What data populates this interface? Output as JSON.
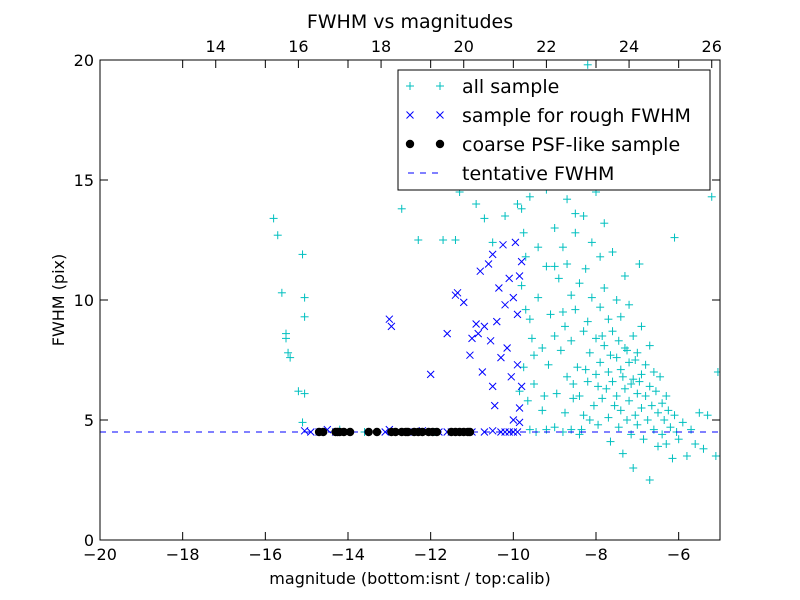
{
  "chart_data": {
    "type": "scatter",
    "title": "FWHM vs magnitudes",
    "xlabel": "magnitude (bottom:isnt / top:calib)",
    "ylabel": "FWHM (pix)",
    "xlim": [
      -20,
      -5
    ],
    "ylim": [
      0,
      20
    ],
    "x_ticks": [
      -20,
      -18,
      -16,
      -14,
      -12,
      -10,
      -8,
      -6
    ],
    "x_tick_labels": [
      "−20",
      "−18",
      "−16",
      "−14",
      "−12",
      "−10",
      "−8",
      "−6"
    ],
    "y_ticks": [
      0,
      5,
      10,
      15,
      20
    ],
    "y_tick_labels": [
      "0",
      "5",
      "10",
      "15",
      "20"
    ],
    "top_axis": {
      "ticks": [
        14,
        16,
        18,
        20,
        22,
        24,
        26
      ],
      "tick_labels": [
        "14",
        "16",
        "18",
        "20",
        "22",
        "24",
        "26"
      ],
      "offset": 31.2
    },
    "grid": false,
    "legend_position": "top-right",
    "series": [
      {
        "name": "all sample",
        "marker": "plus",
        "color": "#00bfbf",
        "points": [
          [
            -15.8,
            13.4
          ],
          [
            -15.7,
            12.7
          ],
          [
            -15.6,
            10.3
          ],
          [
            -15.5,
            8.6
          ],
          [
            -15.5,
            8.4
          ],
          [
            -15.45,
            7.8
          ],
          [
            -15.4,
            7.6
          ],
          [
            -15.2,
            6.2
          ],
          [
            -15.05,
            6.1
          ],
          [
            -15.1,
            11.9
          ],
          [
            -15.05,
            10.1
          ],
          [
            -15.05,
            9.3
          ],
          [
            -15.1,
            4.9
          ],
          [
            -14.2,
            4.6
          ],
          [
            -13.6,
            4.5
          ],
          [
            -12.7,
            13.8
          ],
          [
            -12.3,
            12.5
          ],
          [
            -11.7,
            12.5
          ],
          [
            -11.4,
            12.5
          ],
          [
            -11.3,
            14.5
          ],
          [
            -11.9,
            4.5
          ],
          [
            -10.9,
            14.0
          ],
          [
            -10.7,
            13.4
          ],
          [
            -10.5,
            12.4
          ],
          [
            -10.2,
            13.5
          ],
          [
            -10.0,
            19.3
          ],
          [
            -9.95,
            17.5
          ],
          [
            -9.9,
            15.2
          ],
          [
            -9.8,
            13.8
          ],
          [
            -9.75,
            12.8
          ],
          [
            -9.7,
            11.8
          ],
          [
            -9.7,
            9.6
          ],
          [
            -9.6,
            9.2
          ],
          [
            -9.55,
            8.4
          ],
          [
            -9.5,
            6.5
          ],
          [
            -9.45,
            15.6
          ],
          [
            -9.4,
            12.2
          ],
          [
            -9.4,
            10.1
          ],
          [
            -9.3,
            8.0
          ],
          [
            -9.3,
            5.4
          ],
          [
            -9.2,
            11.4
          ],
          [
            -9.2,
            14.6
          ],
          [
            -9.15,
            7.3
          ],
          [
            -9.1,
            9.4
          ],
          [
            -9.0,
            13.0
          ],
          [
            -9.0,
            11.4
          ],
          [
            -9.0,
            8.5
          ],
          [
            -8.95,
            6.1
          ],
          [
            -8.9,
            15.1
          ],
          [
            -8.9,
            10.9
          ],
          [
            -8.85,
            7.9
          ],
          [
            -8.8,
            12.2
          ],
          [
            -8.8,
            9.5
          ],
          [
            -8.75,
            5.3
          ],
          [
            -8.7,
            14.2
          ],
          [
            -8.7,
            11.5
          ],
          [
            -8.7,
            6.8
          ],
          [
            -8.6,
            10.2
          ],
          [
            -8.6,
            8.3
          ],
          [
            -8.55,
            5.9
          ],
          [
            -8.5,
            12.8
          ],
          [
            -8.5,
            9.6
          ],
          [
            -8.45,
            7.2
          ],
          [
            -8.4,
            10.7
          ],
          [
            -8.4,
            6.0
          ],
          [
            -8.35,
            4.6
          ],
          [
            -8.3,
            13.5
          ],
          [
            -8.3,
            8.7
          ],
          [
            -8.3,
            5.2
          ],
          [
            -8.25,
            11.3
          ],
          [
            -8.2,
            9.1
          ],
          [
            -8.2,
            6.6
          ],
          [
            -8.15,
            7.8
          ],
          [
            -8.1,
            12.4
          ],
          [
            -8.1,
            10.1
          ],
          [
            -8.05,
            5.6
          ],
          [
            -8.0,
            14.5
          ],
          [
            -8.0,
            8.4
          ],
          [
            -8.0,
            6.9
          ],
          [
            -7.95,
            4.8
          ],
          [
            -7.9,
            11.8
          ],
          [
            -7.9,
            9.7
          ],
          [
            -7.9,
            7.4
          ],
          [
            -7.85,
            5.9
          ],
          [
            -7.8,
            13.2
          ],
          [
            -7.8,
            10.5
          ],
          [
            -7.8,
            8.1
          ],
          [
            -7.75,
            6.3
          ],
          [
            -7.7,
            9.2
          ],
          [
            -7.7,
            7.0
          ],
          [
            -7.7,
            5.1
          ],
          [
            -7.65,
            4.1
          ],
          [
            -7.6,
            12.0
          ],
          [
            -7.6,
            8.7
          ],
          [
            -7.6,
            6.6
          ],
          [
            -7.55,
            5.6
          ],
          [
            -7.5,
            10.0
          ],
          [
            -7.5,
            7.6
          ],
          [
            -7.5,
            6.0
          ],
          [
            -7.45,
            4.7
          ],
          [
            -7.4,
            9.3
          ],
          [
            -7.4,
            7.1
          ],
          [
            -7.4,
            5.4
          ],
          [
            -7.35,
            3.6
          ],
          [
            -7.3,
            11.0
          ],
          [
            -7.3,
            8.0
          ],
          [
            -7.3,
            6.3
          ],
          [
            -7.25,
            5.0
          ],
          [
            -7.2,
            9.8
          ],
          [
            -7.2,
            7.4
          ],
          [
            -7.2,
            5.8
          ],
          [
            -7.15,
            4.4
          ],
          [
            -7.1,
            8.5
          ],
          [
            -7.1,
            6.7
          ],
          [
            -7.1,
            3.0
          ],
          [
            -7.05,
            5.2
          ],
          [
            -7.0,
            7.8
          ],
          [
            -7.0,
            6.1
          ],
          [
            -7.0,
            4.8
          ],
          [
            -6.95,
            11.5
          ],
          [
            -6.9,
            8.9
          ],
          [
            -6.9,
            6.9
          ],
          [
            -6.9,
            5.5
          ],
          [
            -6.85,
            4.2
          ],
          [
            -6.8,
            7.3
          ],
          [
            -6.8,
            6.0
          ],
          [
            -6.75,
            5.0
          ],
          [
            -6.7,
            8.1
          ],
          [
            -6.7,
            6.4
          ],
          [
            -6.7,
            2.5
          ],
          [
            -6.65,
            5.6
          ],
          [
            -6.6,
            7.0
          ],
          [
            -6.6,
            4.6
          ],
          [
            -6.55,
            6.2
          ],
          [
            -6.5,
            5.3
          ],
          [
            -6.5,
            3.9
          ],
          [
            -6.45,
            6.8
          ],
          [
            -6.4,
            5.7
          ],
          [
            -6.4,
            4.4
          ],
          [
            -6.35,
            5.0
          ],
          [
            -6.3,
            6.0
          ],
          [
            -6.3,
            4.0
          ],
          [
            -6.25,
            5.4
          ],
          [
            -6.2,
            4.7
          ],
          [
            -6.15,
            3.4
          ],
          [
            -6.1,
            12.6
          ],
          [
            -6.1,
            5.2
          ],
          [
            -6.05,
            4.5
          ],
          [
            -6.0,
            4.2
          ],
          [
            -5.9,
            4.9
          ],
          [
            -5.8,
            3.5
          ],
          [
            -5.7,
            4.6
          ],
          [
            -5.6,
            4.0
          ],
          [
            -5.5,
            5.3
          ],
          [
            -5.4,
            3.8
          ],
          [
            -5.3,
            5.2
          ],
          [
            -5.2,
            14.3
          ],
          [
            -5.1,
            3.5
          ],
          [
            -5.05,
            7.0
          ],
          [
            -8.45,
            19.0
          ],
          [
            -8.2,
            19.8
          ],
          [
            -8.6,
            17.3
          ],
          [
            -8.1,
            16.5
          ],
          [
            -8.9,
            18.2
          ],
          [
            -8.3,
            15.8
          ],
          [
            -7.8,
            15.3
          ],
          [
            -9.3,
            16.9
          ],
          [
            -8.0,
            17.8
          ],
          [
            -7.6,
            14.9
          ],
          [
            -8.7,
            15.7
          ],
          [
            -9.1,
            17.9
          ],
          [
            -9.6,
            14.3
          ],
          [
            -9.9,
            14.0
          ],
          [
            -8.5,
            13.6
          ],
          [
            -9.8,
            10.6
          ],
          [
            -9.75,
            7.2
          ],
          [
            -9.65,
            5.8
          ],
          [
            -9.6,
            4.6
          ],
          [
            -9.45,
            4.5
          ],
          [
            -9.2,
            4.6
          ],
          [
            -9.0,
            4.7
          ],
          [
            -8.8,
            4.5
          ],
          [
            -8.6,
            4.6
          ],
          [
            -8.4,
            4.4
          ],
          [
            -9.85,
            6.2
          ],
          [
            -9.5,
            7.7
          ],
          [
            -9.25,
            6.0
          ],
          [
            -8.75,
            8.9
          ],
          [
            -8.55,
            6.5
          ],
          [
            -8.25,
            7.1
          ],
          [
            -8.15,
            5.0
          ],
          [
            -7.95,
            6.4
          ],
          [
            -7.85,
            8.5
          ],
          [
            -7.65,
            7.7
          ],
          [
            -7.45,
            8.3
          ],
          [
            -7.35,
            6.8
          ],
          [
            -7.25,
            7.9
          ],
          [
            -7.15,
            6.5
          ],
          [
            -7.05,
            7.5
          ],
          [
            -6.95,
            6.6
          ]
        ]
      },
      {
        "name": "sample for rough FWHM",
        "marker": "x",
        "color": "#0000ff",
        "points": [
          [
            -15.05,
            4.55
          ],
          [
            -14.9,
            4.5
          ],
          [
            -14.7,
            4.5
          ],
          [
            -14.5,
            4.6
          ],
          [
            -14.3,
            4.5
          ],
          [
            -13.1,
            4.5
          ],
          [
            -13.0,
            4.6
          ],
          [
            -12.9,
            4.5
          ],
          [
            -12.6,
            4.5
          ],
          [
            -12.2,
            4.55
          ],
          [
            -11.8,
            4.5
          ],
          [
            -11.6,
            4.5
          ],
          [
            -11.0,
            4.5
          ],
          [
            -10.7,
            4.5
          ],
          [
            -10.5,
            4.55
          ],
          [
            -10.3,
            4.5
          ],
          [
            -10.2,
            4.5
          ],
          [
            -10.1,
            4.5
          ],
          [
            -10.0,
            4.5
          ],
          [
            -9.9,
            4.5
          ],
          [
            -13.0,
            9.2
          ],
          [
            -12.95,
            8.9
          ],
          [
            -12.0,
            6.9
          ],
          [
            -11.6,
            8.6
          ],
          [
            -11.4,
            10.2
          ],
          [
            -11.35,
            10.3
          ],
          [
            -11.2,
            9.9
          ],
          [
            -11.05,
            7.7
          ],
          [
            -11.0,
            8.4
          ],
          [
            -10.9,
            9.0
          ],
          [
            -10.85,
            8.6
          ],
          [
            -10.8,
            11.2
          ],
          [
            -10.75,
            7.0
          ],
          [
            -10.7,
            8.9
          ],
          [
            -10.6,
            11.5
          ],
          [
            -10.55,
            8.3
          ],
          [
            -10.5,
            6.4
          ],
          [
            -10.5,
            11.9
          ],
          [
            -10.45,
            5.6
          ],
          [
            -10.4,
            9.1
          ],
          [
            -10.35,
            10.5
          ],
          [
            -10.3,
            7.6
          ],
          [
            -10.25,
            12.3
          ],
          [
            -10.2,
            9.8
          ],
          [
            -10.15,
            8.0
          ],
          [
            -10.1,
            10.9
          ],
          [
            -10.05,
            6.8
          ],
          [
            -10.0,
            10.1
          ],
          [
            -10.0,
            5.0
          ],
          [
            -9.95,
            12.4
          ],
          [
            -9.9,
            7.3
          ],
          [
            -9.85,
            11.0
          ],
          [
            -9.9,
            9.4
          ],
          [
            -9.85,
            5.5
          ],
          [
            -9.8,
            6.4
          ],
          [
            -9.8,
            11.6
          ],
          [
            -9.85,
            4.9
          ],
          [
            -11.5,
            4.5
          ],
          [
            -11.3,
            4.5
          ],
          [
            -12.4,
            4.5
          ]
        ]
      },
      {
        "name": "coarse PSF-like sample",
        "marker": "circle",
        "color": "#000000",
        "points": [
          [
            -14.7,
            4.5
          ],
          [
            -14.6,
            4.5
          ],
          [
            -14.3,
            4.5
          ],
          [
            -14.25,
            4.5
          ],
          [
            -14.2,
            4.5
          ],
          [
            -14.1,
            4.5
          ],
          [
            -13.95,
            4.5
          ],
          [
            -13.5,
            4.5
          ],
          [
            -13.3,
            4.5
          ],
          [
            -12.95,
            4.5
          ],
          [
            -12.85,
            4.5
          ],
          [
            -12.7,
            4.5
          ],
          [
            -12.6,
            4.5
          ],
          [
            -12.55,
            4.5
          ],
          [
            -12.4,
            4.5
          ],
          [
            -12.3,
            4.5
          ],
          [
            -12.2,
            4.5
          ],
          [
            -12.05,
            4.5
          ],
          [
            -11.95,
            4.5
          ],
          [
            -11.85,
            4.5
          ],
          [
            -11.5,
            4.5
          ],
          [
            -11.4,
            4.5
          ],
          [
            -11.3,
            4.5
          ],
          [
            -11.2,
            4.5
          ],
          [
            -11.1,
            4.5
          ],
          [
            -11.05,
            4.5
          ]
        ]
      },
      {
        "name": "tentative FWHM",
        "marker": "dashed-line",
        "color": "#0000ff",
        "y": 4.5
      }
    ]
  }
}
